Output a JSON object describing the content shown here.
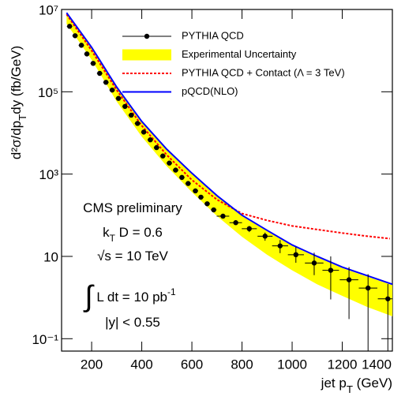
{
  "chart_data": {
    "type": "line",
    "xlabel": [
      {
        "text": "jet p"
      },
      {
        "text": "T",
        "shift": "sub"
      },
      {
        "text": " (GeV)"
      }
    ],
    "ylabel": [
      {
        "text": "d²σ/dp"
      },
      {
        "text": "T",
        "shift": "sub"
      },
      {
        "text": "dy (fb/GeV)"
      }
    ],
    "xlim": [
      80,
      1400
    ],
    "xticks": [
      200,
      400,
      600,
      800,
      1000,
      1200,
      1400
    ],
    "ylim": [
      0.05,
      10000000
    ],
    "ylog": true,
    "yticks": [
      {
        "value": 10000000,
        "label": "10⁷"
      },
      {
        "value": 100000,
        "label": "10⁵"
      },
      {
        "value": 1000,
        "label": "10³"
      },
      10,
      {
        "value": 0.1,
        "label": "10⁻¹"
      }
    ],
    "legend": "upper right",
    "series": [
      {
        "name": "PYTHIA QCD",
        "style": "points",
        "color": "#000000",
        "x": [
          112,
          134,
          159,
          181,
          206,
          232,
          257,
          282,
          307,
          333,
          358,
          383,
          408,
          434,
          459,
          484,
          510,
          535,
          560,
          585,
          614,
          636,
          661,
          687,
          724,
          775,
          829,
          892,
          952,
          1015,
          1088,
          1154,
          1227,
          1303,
          1382
        ],
        "values": [
          3900000,
          2300000,
          1350000,
          830000,
          490000,
          280000,
          170000,
          110000,
          69000,
          44000,
          27000,
          17000,
          10500,
          6800,
          4400,
          2750,
          1850,
          1250,
          830,
          590,
          390,
          275,
          190,
          135,
          95,
          66,
          47,
          31,
          18,
          11,
          6.9,
          4.6,
          2.7,
          1.7,
          0.93
        ],
        "xerr": [
          11,
          11,
          11,
          11,
          11,
          11,
          11,
          11,
          11,
          11,
          11,
          11,
          11,
          11,
          11,
          11,
          11,
          11,
          11,
          11,
          11,
          11,
          11,
          11,
          25,
          25,
          30,
          30,
          32,
          32,
          37,
          33,
          37,
          37,
          40
        ],
        "yerr_low": [
          0,
          0,
          0,
          0,
          0,
          0,
          0,
          0,
          0,
          0,
          0,
          0,
          0,
          0,
          0,
          0,
          0,
          0,
          0,
          0,
          0,
          0,
          0,
          0,
          10,
          8,
          8,
          7,
          6,
          4,
          3.4,
          3.7,
          2.4,
          1.65,
          0.88
        ],
        "yerr_high": [
          0,
          0,
          0,
          0,
          0,
          0,
          0,
          0,
          0,
          0,
          0,
          0,
          0,
          0,
          0,
          0,
          0,
          0,
          0,
          0,
          0,
          0,
          0,
          0,
          10,
          8,
          8,
          7,
          7,
          6,
          5.4,
          5.4,
          2.8,
          2,
          1.2
        ]
      },
      {
        "name": "Experimental Uncertainty",
        "style": "band",
        "color": "#ffff00",
        "x": [
          100,
          200,
          300,
          400,
          500,
          600,
          700,
          800,
          900,
          1000,
          1100,
          1200,
          1300,
          1400
        ],
        "lower": [
          4500000,
          600000,
          58000,
          8100,
          1550,
          365,
          96,
          30,
          11,
          4.6,
          2.1,
          1.1,
          0.59,
          0.35
        ],
        "upper": [
          8000000,
          1150000,
          125000,
          18000,
          3800,
          1000,
          290,
          95,
          41,
          18,
          9.5,
          5.2,
          3.2,
          2.0
        ]
      },
      {
        "name": "PYTHIA QCD + Contact (Λ = 3 TeV)",
        "style": "dashed",
        "color": "#ff0000",
        "x": [
          100,
          200,
          300,
          400,
          500,
          600,
          700,
          800,
          900,
          1000,
          1100,
          1200,
          1300,
          1390
        ],
        "values": [
          7600000,
          1000000,
          110000,
          15000,
          2900,
          720,
          240,
          110,
          75,
          55,
          45,
          37,
          31,
          27
        ]
      },
      {
        "name": "pQCD(NLO)",
        "style": "solid",
        "color": "#0000ff",
        "x": [
          100,
          200,
          300,
          400,
          500,
          600,
          700,
          800,
          900,
          1000,
          1100,
          1200,
          1300,
          1400
        ],
        "values": [
          8300000,
          1200000,
          130000,
          19000,
          4000,
          1050,
          300,
          100,
          43,
          19,
          10,
          5.5,
          3.4,
          2.1
        ]
      }
    ],
    "annotations": [
      [
        {
          "text": "CMS preliminary"
        }
      ],
      [
        {
          "text": "k"
        },
        {
          "text": "T",
          "shift": "sub"
        },
        {
          "text": " D = 0.6"
        }
      ],
      [
        {
          "text": "√s = 10 TeV"
        }
      ],
      [
        {
          "text": "∫",
          "shift": "big"
        },
        {
          "text": " L dt = 10 pb"
        },
        {
          "text": "-1",
          "shift": "sup"
        }
      ],
      [
        {
          "text": "|y| < 0.55"
        }
      ]
    ]
  }
}
